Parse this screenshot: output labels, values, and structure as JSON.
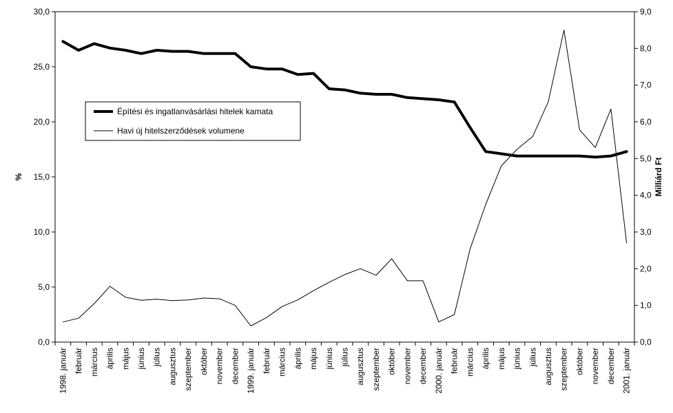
{
  "chart_data": {
    "type": "line",
    "categories": [
      "1998. január",
      "február",
      "március",
      "április",
      "május",
      "június",
      "július",
      "augusztus",
      "szeptember",
      "október",
      "november",
      "december",
      "1999. január",
      "február",
      "március",
      "április",
      "május",
      "június",
      "július",
      "augusztus",
      "szeptember",
      "október",
      "november",
      "december",
      "2000. január",
      "február",
      "március",
      "április",
      "május",
      "június",
      "július",
      "augusztus",
      "szeptember",
      "október",
      "november",
      "december",
      "2001. január"
    ],
    "series": [
      {
        "name": "Építési és ingatlanvásárlási hitelek kamata",
        "axis": "left",
        "line": "thick",
        "values": [
          27.3,
          26.5,
          27.1,
          26.7,
          26.5,
          26.2,
          26.5,
          26.4,
          26.4,
          26.2,
          26.2,
          26.2,
          25.0,
          24.8,
          24.8,
          24.3,
          24.4,
          23.0,
          22.9,
          22.6,
          22.5,
          22.5,
          22.2,
          22.1,
          22.0,
          21.8,
          19.5,
          17.3,
          17.1,
          16.9,
          16.9,
          16.9,
          16.9,
          16.9,
          16.8,
          16.9,
          17.3
        ]
      },
      {
        "name": "Havi új hitelszerződések volumene",
        "axis": "right",
        "line": "thin",
        "values": [
          0.55,
          0.65,
          1.05,
          1.52,
          1.22,
          1.14,
          1.17,
          1.13,
          1.15,
          1.2,
          1.18,
          1.0,
          0.44,
          0.67,
          0.97,
          1.15,
          1.4,
          1.63,
          1.84,
          2.0,
          1.82,
          2.27,
          1.67,
          1.67,
          0.55,
          0.75,
          2.53,
          3.75,
          4.8,
          5.25,
          5.6,
          6.55,
          8.5,
          5.78,
          5.3,
          6.35,
          2.7
        ]
      }
    ],
    "ylabel": "%",
    "ylabel_right": "Milliárd Ft",
    "ylim": [
      0,
      30
    ],
    "ylim_right": [
      0,
      9
    ],
    "yticks": [
      "0,0",
      "5,0",
      "10,0",
      "15,0",
      "20,0",
      "25,0",
      "30,0"
    ],
    "yticks_right": [
      "0,0",
      "1,0",
      "2,0",
      "3,0",
      "4,0",
      "5,0",
      "6,0",
      "7,0",
      "8,0",
      "9,0"
    ],
    "grid": false,
    "legend_position": "upper-left-inside",
    "legend_labels": [
      "Építési és ingatlanvásárlási hitelek kamata",
      "Havi új hitelszerződések volumene"
    ],
    "colors": {
      "line": "#000000",
      "background": "#ffffff"
    }
  }
}
